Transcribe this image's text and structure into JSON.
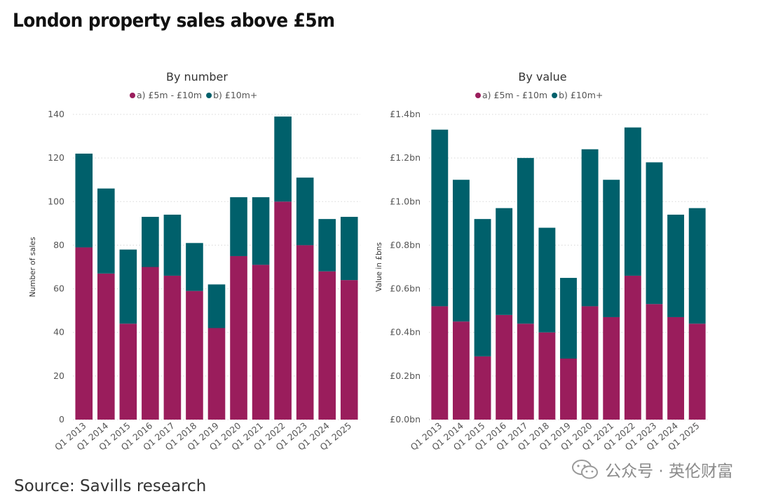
{
  "page": {
    "title": "London property sales above £5m",
    "source": "Source: Savills research",
    "watermark": "公众号 · 英伦财富"
  },
  "colors": {
    "series_a": "#9a1d5c",
    "series_b": "#00606b"
  },
  "chart_data": [
    {
      "type": "bar",
      "stacked": true,
      "title": "By number",
      "xlabel": "",
      "ylabel": "Number of sales",
      "ylim": [
        0,
        140
      ],
      "yticks": [
        0,
        20,
        40,
        60,
        80,
        100,
        120,
        140
      ],
      "ytick_labels": [
        "0",
        "20",
        "40",
        "60",
        "80",
        "100",
        "120",
        "140"
      ],
      "legend": "top-center",
      "grid": true,
      "categories": [
        "Q1 2013",
        "Q1 2014",
        "Q1 2015",
        "Q1 2016",
        "Q1 2017",
        "Q1 2018",
        "Q1 2019",
        "Q1 2020",
        "Q1 2021",
        "Q1 2022",
        "Q1 2023",
        "Q1 2024",
        "Q1 2025"
      ],
      "series": [
        {
          "name": "a) £5m - £10m",
          "values": [
            79,
            67,
            44,
            70,
            66,
            59,
            42,
            75,
            71,
            100,
            80,
            68,
            64
          ]
        },
        {
          "name": "b) £10m+",
          "values": [
            43,
            39,
            34,
            23,
            28,
            22,
            20,
            27,
            31,
            39,
            31,
            24,
            29
          ]
        }
      ]
    },
    {
      "type": "bar",
      "stacked": true,
      "title": "By value",
      "xlabel": "",
      "ylabel": "Value in £bns",
      "ylim": [
        0,
        1.4
      ],
      "yticks": [
        0,
        0.2,
        0.4,
        0.6,
        0.8,
        1.0,
        1.2,
        1.4
      ],
      "ytick_labels": [
        "£0.0bn",
        "£0.2bn",
        "£0.4bn",
        "£0.6bn",
        "£0.8bn",
        "£1.0bn",
        "£1.2bn",
        "£1.4bn"
      ],
      "legend": "top-center",
      "grid": true,
      "categories": [
        "Q1 2013",
        "Q1 2014",
        "Q1 2015",
        "Q1 2016",
        "Q1 2017",
        "Q1 2018",
        "Q1 2019",
        "Q1 2020",
        "Q1 2021",
        "Q1 2022",
        "Q1 2023",
        "Q1 2024",
        "Q1 2025"
      ],
      "series": [
        {
          "name": "a) £5m - £10m",
          "values": [
            0.52,
            0.45,
            0.29,
            0.48,
            0.44,
            0.4,
            0.28,
            0.52,
            0.47,
            0.66,
            0.53,
            0.47,
            0.44
          ]
        },
        {
          "name": "b) £10m+",
          "values": [
            0.81,
            0.65,
            0.63,
            0.49,
            0.76,
            0.48,
            0.37,
            0.72,
            0.63,
            0.68,
            0.65,
            0.47,
            0.53
          ]
        }
      ]
    }
  ]
}
